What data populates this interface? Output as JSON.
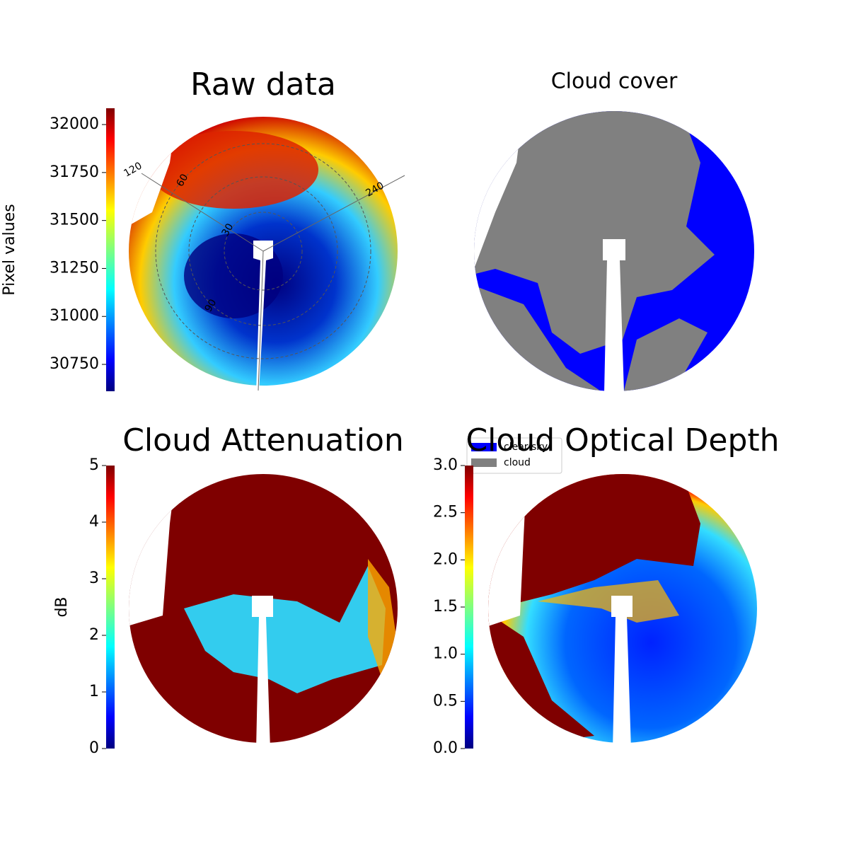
{
  "chart_data": [
    {
      "type": "image",
      "title": "Raw data",
      "colorbar_label": "Pixel values",
      "colormap": "jet",
      "ylim": [
        30610,
        32085
      ],
      "yticks": [
        30750,
        31000,
        31250,
        31500,
        31750,
        32000
      ],
      "annotations": [
        "120",
        "240",
        "60",
        "30",
        "90"
      ]
    },
    {
      "type": "image",
      "title": "Cloud cover",
      "legend": [
        {
          "name": "clear sky",
          "color": "#0000ff"
        },
        {
          "name": "cloud",
          "color": "#808080"
        }
      ]
    },
    {
      "type": "image",
      "title": "Cloud Attenuation",
      "colorbar_label": "dB",
      "colormap": "jet",
      "ylim": [
        0,
        5
      ],
      "yticks": [
        0,
        1,
        2,
        3,
        4,
        5
      ]
    },
    {
      "type": "image",
      "title": "Cloud Optical Depth",
      "colormap": "jet",
      "ylim": [
        0,
        3.0
      ],
      "yticks": [
        {
          "value": 0,
          "label": "0.0"
        },
        0.5,
        {
          "value": 1,
          "label": "1.0"
        },
        1.5,
        {
          "value": 2,
          "label": "2.0"
        },
        2.5,
        {
          "value": 3,
          "label": "3.0"
        }
      ]
    }
  ]
}
